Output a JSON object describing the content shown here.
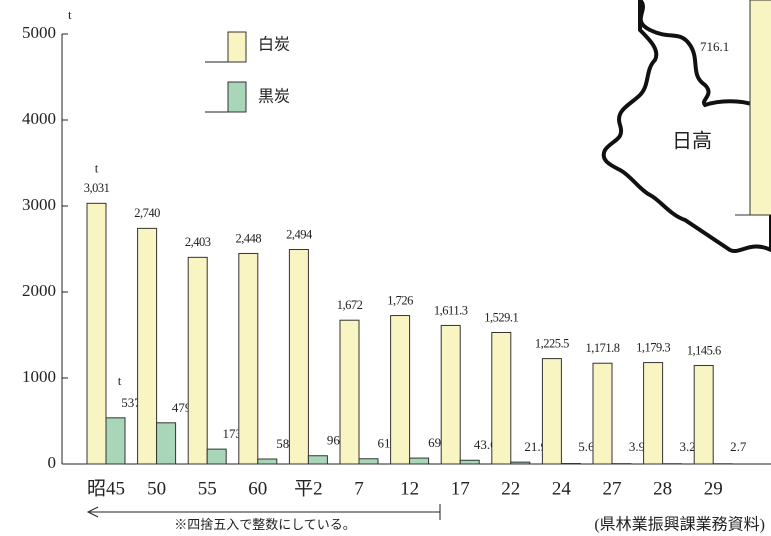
{
  "chart_data": {
    "type": "bar",
    "y_unit": "t",
    "categories": [
      "昭45",
      "50",
      "55",
      "60",
      "平2",
      "7",
      "12",
      "17",
      "22",
      "24",
      "27",
      "28",
      "29"
    ],
    "series": [
      {
        "name": "白炭",
        "color": "#f8f5c2",
        "values": [
          3031,
          2740,
          2403,
          2448,
          2494,
          1672,
          1726,
          1611.3,
          1529.1,
          1225.5,
          1171.8,
          1179.3,
          1145.6
        ],
        "value_labels": [
          "3,031",
          "2,740",
          "2,403",
          "2,448",
          "2,494",
          "1,672",
          "1,726",
          "1,611.3",
          "1,529.1",
          "1,225.5",
          "1,171.8",
          "1,179.3",
          "1,145.6"
        ]
      },
      {
        "name": "黒炭",
        "color": "#a9d6b8",
        "values": [
          537,
          479,
          173,
          58,
          96,
          61,
          69,
          43.6,
          21.9,
          5.6,
          3.9,
          3.2,
          2.7
        ]
      }
    ],
    "ylim": [
      0,
      5000
    ],
    "yticks": [
      0,
      1000,
      2000,
      3000,
      4000,
      5000
    ],
    "annotations": {
      "unit_white": "t",
      "unit_black": "t",
      "rounding_note": "※四捨五入で整数にしている。",
      "source": "(県林業振興課業務資料)",
      "map_value": "716.1",
      "map_region": "日高"
    }
  }
}
